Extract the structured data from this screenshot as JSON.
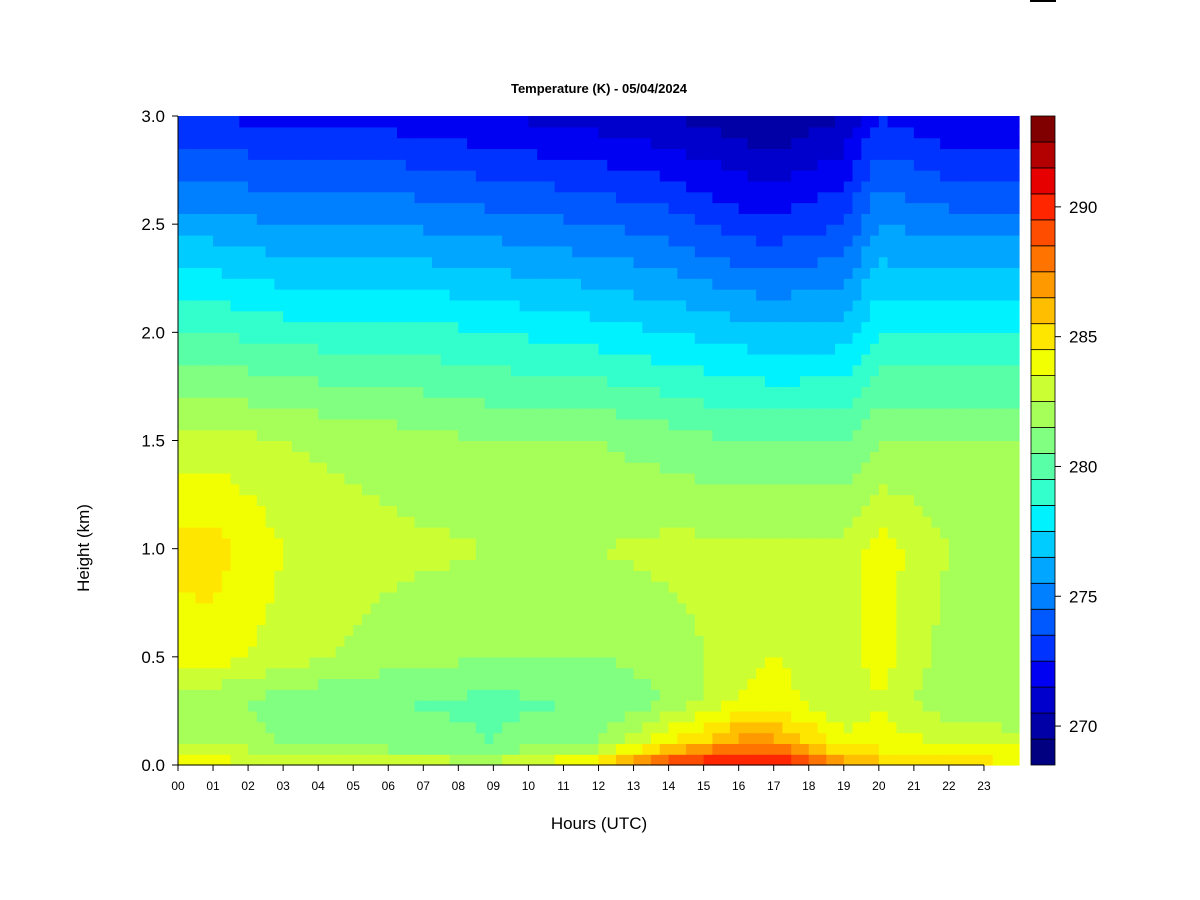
{
  "chart_data": {
    "type": "heatmap",
    "title": "Temperature (K) - 05/04/2024",
    "xlabel": "Hours (UTC)",
    "ylabel": "Height (km)",
    "xlim": [
      0,
      24
    ],
    "ylim": [
      0.0,
      3.0
    ],
    "x_tick_values": [
      0,
      1,
      2,
      3,
      4,
      5,
      6,
      7,
      8,
      9,
      10,
      11,
      12,
      13,
      14,
      15,
      16,
      17,
      18,
      19,
      20,
      21,
      22,
      23
    ],
    "x_tick_labels": [
      "00",
      "01",
      "02",
      "03",
      "04",
      "05",
      "06",
      "07",
      "08",
      "09",
      "10",
      "11",
      "12",
      "13",
      "14",
      "15",
      "16",
      "17",
      "18",
      "19",
      "20",
      "21",
      "22",
      "23"
    ],
    "y_tick_values": [
      0.0,
      0.5,
      1.0,
      1.5,
      2.0,
      2.5,
      3.0
    ],
    "y_tick_labels": [
      "0.0",
      "0.5",
      "1.0",
      "1.5",
      "2.0",
      "2.5",
      "3.0"
    ],
    "colorbar": {
      "range": [
        269,
        293
      ],
      "step": 1,
      "tick_values": [
        270,
        275,
        280,
        285,
        290
      ],
      "tick_labels": [
        "270",
        "275",
        "280",
        "285",
        "290"
      ],
      "colors": [
        "#000080",
        "#0000A6",
        "#0000CC",
        "#0000F2",
        "#0033FF",
        "#0059FF",
        "#0080FF",
        "#00A6FF",
        "#00CCFF",
        "#00F2FF",
        "#33FFCC",
        "#59FFA6",
        "#80FF80",
        "#A6FF59",
        "#CCFF33",
        "#F2FF00",
        "#FFE600",
        "#FFBF00",
        "#FF9900",
        "#FF7300",
        "#FF4D00",
        "#FF2600",
        "#E60000",
        "#B30000",
        "#800000"
      ]
    },
    "profiles": [
      {
        "hour": 0,
        "heights": [
          0.0,
          0.05,
          0.1,
          0.3,
          0.5,
          1.0,
          1.5,
          2.0,
          2.5,
          3.0
        ],
        "temperature": [
          284.5,
          283.8,
          283.0,
          282.5,
          284.5,
          285.3,
          283.5,
          280.0,
          276.5,
          273.0
        ]
      },
      {
        "hour": 1,
        "heights": [
          0.0,
          0.05,
          0.1,
          0.3,
          0.5,
          1.0,
          1.5,
          2.0,
          2.5,
          3.0
        ],
        "temperature": [
          284.5,
          283.8,
          283.0,
          282.3,
          284.5,
          285.5,
          283.5,
          280.0,
          276.5,
          273.0
        ]
      },
      {
        "hour": 3,
        "heights": [
          0.0,
          0.05,
          0.1,
          0.3,
          0.5,
          1.0,
          1.5,
          2.0,
          2.5,
          3.0
        ],
        "temperature": [
          284.0,
          283.0,
          282.0,
          281.5,
          283.5,
          284.0,
          283.0,
          279.5,
          276.0,
          272.5
        ]
      },
      {
        "hour": 6,
        "heights": [
          0.0,
          0.05,
          0.1,
          0.3,
          0.5,
          1.0,
          1.5,
          2.0,
          2.5,
          3.0
        ],
        "temperature": [
          283.8,
          282.5,
          281.5,
          281.0,
          282.5,
          283.3,
          282.5,
          279.5,
          276.0,
          272.5
        ]
      },
      {
        "hour": 9,
        "heights": [
          0.0,
          0.05,
          0.1,
          0.3,
          0.5,
          1.0,
          1.5,
          2.0,
          2.5,
          3.0
        ],
        "temperature": [
          283.5,
          282.3,
          281.0,
          280.8,
          282.0,
          283.0,
          282.0,
          279.0,
          275.5,
          272.0
        ]
      },
      {
        "hour": 12,
        "heights": [
          0.0,
          0.05,
          0.1,
          0.3,
          0.5,
          1.0,
          1.5,
          2.0,
          2.5,
          3.0
        ],
        "temperature": [
          285.5,
          284.0,
          282.0,
          281.0,
          282.0,
          283.0,
          282.0,
          278.5,
          275.0,
          271.5
        ]
      },
      {
        "hour": 14,
        "heights": [
          0.0,
          0.05,
          0.1,
          0.3,
          0.5,
          1.0,
          1.5,
          2.0,
          2.5,
          3.0
        ],
        "temperature": [
          290.5,
          288.0,
          285.0,
          282.0,
          282.5,
          283.3,
          281.5,
          278.0,
          274.5,
          271.0
        ]
      },
      {
        "hour": 16,
        "heights": [
          0.0,
          0.05,
          0.1,
          0.3,
          0.5,
          1.0,
          1.5,
          2.0,
          2.5,
          3.0
        ],
        "temperature": [
          291.5,
          290.0,
          287.5,
          284.0,
          283.5,
          283.3,
          281.0,
          277.5,
          273.5,
          270.3
        ]
      },
      {
        "hour": 17,
        "heights": [
          0.0,
          0.05,
          0.1,
          0.3,
          0.5,
          1.0,
          1.5,
          2.0,
          2.5,
          3.0
        ],
        "temperature": [
          291.5,
          290.0,
          287.5,
          284.5,
          284.0,
          283.3,
          281.0,
          277.3,
          273.3,
          270.0
        ]
      },
      {
        "hour": 19,
        "heights": [
          0.0,
          0.05,
          0.1,
          0.3,
          0.5,
          1.0,
          1.5,
          2.0,
          2.5,
          3.0
        ],
        "temperature": [
          287.5,
          286.0,
          284.5,
          283.0,
          283.5,
          283.3,
          281.0,
          277.5,
          274.0,
          271.0
        ]
      },
      {
        "hour": 20,
        "heights": [
          0.0,
          0.05,
          0.1,
          0.3,
          0.5,
          1.0,
          1.5,
          2.0,
          2.5,
          3.0
        ],
        "temperature": [
          286.5,
          285.5,
          284.5,
          284.0,
          284.5,
          284.5,
          282.0,
          279.0,
          276.0,
          273.0
        ]
      },
      {
        "hour": 22,
        "heights": [
          0.0,
          0.05,
          0.1,
          0.3,
          0.5,
          1.0,
          1.5,
          2.0,
          2.5,
          3.0
        ],
        "temperature": [
          286.0,
          285.0,
          284.0,
          282.0,
          282.5,
          283.0,
          282.0,
          279.0,
          275.5,
          272.0
        ]
      },
      {
        "hour": 24,
        "heights": [
          0.0,
          0.05,
          0.1,
          0.3,
          0.5,
          1.0,
          1.5,
          2.0,
          2.5,
          3.0
        ],
        "temperature": [
          285.0,
          284.5,
          283.5,
          282.0,
          282.5,
          283.0,
          282.0,
          279.0,
          275.5,
          272.0
        ]
      }
    ]
  }
}
